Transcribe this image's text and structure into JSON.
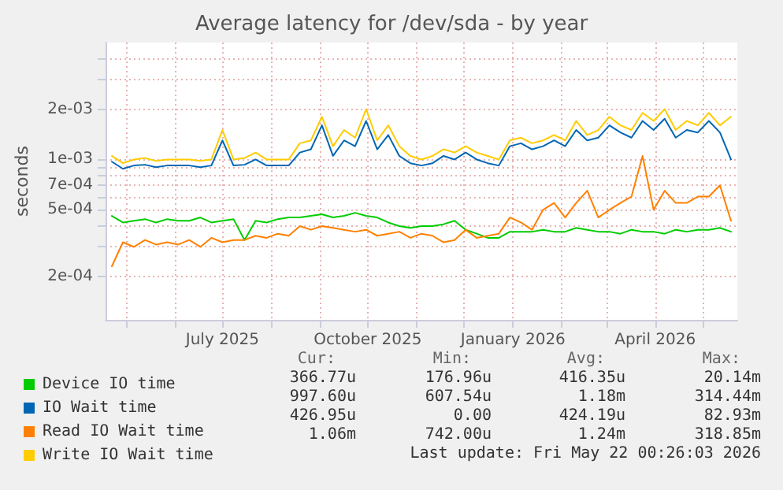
{
  "chart_data": {
    "type": "line",
    "title": "Average latency for /dev/sda - by year",
    "ylabel": "seconds",
    "log": "y",
    "grid": true,
    "legend": "bottom left",
    "marker": "none",
    "line_style": "solid",
    "x": [
      "2025-04-22",
      "2025-04-29",
      "2025-05-06",
      "2025-05-13",
      "2025-05-20",
      "2025-05-27",
      "2025-06-03",
      "2025-06-10",
      "2025-06-17",
      "2025-06-24",
      "2025-07-01",
      "2025-07-08",
      "2025-07-15",
      "2025-07-22",
      "2025-07-29",
      "2025-08-05",
      "2025-08-12",
      "2025-08-19",
      "2025-08-26",
      "2025-09-02",
      "2025-09-09",
      "2025-09-16",
      "2025-09-23",
      "2025-09-30",
      "2025-10-07",
      "2025-10-14",
      "2025-10-21",
      "2025-10-28",
      "2025-11-04",
      "2025-11-11",
      "2025-11-18",
      "2025-11-25",
      "2025-12-02",
      "2025-12-09",
      "2025-12-16",
      "2025-12-23",
      "2025-12-30",
      "2026-01-06",
      "2026-01-13",
      "2026-01-20",
      "2026-01-27",
      "2026-02-03",
      "2026-02-10",
      "2026-02-17",
      "2026-02-24",
      "2026-03-03",
      "2026-03-10",
      "2026-03-17",
      "2026-03-24",
      "2026-03-31",
      "2026-04-07",
      "2026-04-14",
      "2026-04-21",
      "2026-04-28",
      "2026-05-05",
      "2026-05-12",
      "2026-05-19"
    ],
    "xlim": [
      "2025-04-18",
      "2026-05-23"
    ],
    "xticks": [
      {
        "value": "2025-05-01",
        "label": null
      },
      {
        "value": "2025-06-01",
        "label": null
      },
      {
        "value": "2025-07-01",
        "label": "July 2025"
      },
      {
        "value": "2025-08-01",
        "label": null
      },
      {
        "value": "2025-09-01",
        "label": null
      },
      {
        "value": "2025-10-01",
        "label": "October 2025"
      },
      {
        "value": "2025-11-01",
        "label": null
      },
      {
        "value": "2025-12-01",
        "label": null
      },
      {
        "value": "2026-01-01",
        "label": "January 2026"
      },
      {
        "value": "2026-02-01",
        "label": null
      },
      {
        "value": "2026-03-01",
        "label": null
      },
      {
        "value": "2026-04-01",
        "label": "April 2026"
      },
      {
        "value": "2026-05-01",
        "label": null
      }
    ],
    "ylim": [
      0.00011,
      0.005
    ],
    "yticks": [
      {
        "value": 0.0002,
        "label": "2e-04"
      },
      {
        "value": 0.0003,
        "label": null
      },
      {
        "value": 0.0004,
        "label": null
      },
      {
        "value": 0.0005,
        "label": "5e-04"
      },
      {
        "value": 0.0006,
        "label": null
      },
      {
        "value": 0.0007,
        "label": "7e-04"
      },
      {
        "value": 0.0008,
        "label": null
      },
      {
        "value": 0.0009,
        "label": null
      },
      {
        "value": 0.001,
        "label": "1e-03"
      },
      {
        "value": 0.002,
        "label": "2e-03"
      },
      {
        "value": 0.003,
        "label": null
      },
      {
        "value": 0.004,
        "label": null
      }
    ],
    "series": [
      {
        "name": "Device IO time",
        "color": "#00cc00",
        "values": [
          0.00046,
          0.00042,
          0.00043,
          0.00044,
          0.00042,
          0.00044,
          0.00043,
          0.00043,
          0.00045,
          0.00042,
          0.00043,
          0.00044,
          0.00033,
          0.00043,
          0.00042,
          0.00044,
          0.00045,
          0.00045,
          0.00046,
          0.00047,
          0.00045,
          0.00046,
          0.00048,
          0.00046,
          0.00045,
          0.00042,
          0.0004,
          0.00039,
          0.0004,
          0.0004,
          0.00041,
          0.00043,
          0.00038,
          0.00036,
          0.00034,
          0.00034,
          0.00037,
          0.00037,
          0.00037,
          0.00038,
          0.00037,
          0.00037,
          0.00039,
          0.00038,
          0.00037,
          0.00037,
          0.00036,
          0.00038,
          0.00037,
          0.00037,
          0.00036,
          0.00038,
          0.00037,
          0.00038,
          0.00038,
          0.00039,
          0.00037
        ]
      },
      {
        "name": "IO Wait time",
        "color": "#0066b3",
        "values": [
          0.00097,
          0.00088,
          0.00092,
          0.00093,
          0.0009,
          0.00092,
          0.00092,
          0.00092,
          0.0009,
          0.00092,
          0.0013,
          0.00092,
          0.00093,
          0.001,
          0.00092,
          0.00092,
          0.00092,
          0.0011,
          0.00115,
          0.0016,
          0.00105,
          0.0013,
          0.0012,
          0.0017,
          0.00115,
          0.0014,
          0.00105,
          0.00095,
          0.00092,
          0.00095,
          0.00105,
          0.001,
          0.0011,
          0.001,
          0.00095,
          0.00092,
          0.0012,
          0.00125,
          0.00115,
          0.0012,
          0.0013,
          0.0012,
          0.0015,
          0.0013,
          0.00135,
          0.0016,
          0.00145,
          0.00135,
          0.0017,
          0.0015,
          0.00175,
          0.00135,
          0.0015,
          0.00145,
          0.0017,
          0.00145,
          0.001
        ]
      },
      {
        "name": "Read IO Wait time",
        "color": "#ff8000",
        "values": [
          0.00023,
          0.00032,
          0.0003,
          0.00033,
          0.00031,
          0.00032,
          0.00031,
          0.00033,
          0.0003,
          0.00034,
          0.00032,
          0.00033,
          0.00033,
          0.00035,
          0.00034,
          0.00036,
          0.00035,
          0.0004,
          0.00038,
          0.0004,
          0.00039,
          0.00038,
          0.00037,
          0.00038,
          0.00035,
          0.00036,
          0.00037,
          0.00034,
          0.00036,
          0.00035,
          0.00032,
          0.00033,
          0.00038,
          0.00034,
          0.00035,
          0.00036,
          0.00045,
          0.00042,
          0.00038,
          0.0005,
          0.00055,
          0.00045,
          0.00055,
          0.00065,
          0.00045,
          0.0005,
          0.00055,
          0.0006,
          0.00105,
          0.0005,
          0.00065,
          0.00055,
          0.00055,
          0.0006,
          0.0006,
          0.0007,
          0.00043
        ]
      },
      {
        "name": "Write IO Wait time",
        "color": "#ffcc00",
        "values": [
          0.00105,
          0.00095,
          0.001,
          0.00102,
          0.00098,
          0.001,
          0.001,
          0.001,
          0.00098,
          0.001,
          0.0015,
          0.001,
          0.00102,
          0.0011,
          0.001,
          0.001,
          0.001,
          0.00125,
          0.0013,
          0.0018,
          0.0012,
          0.0015,
          0.00135,
          0.002,
          0.0013,
          0.0016,
          0.0012,
          0.00105,
          0.001,
          0.00105,
          0.00115,
          0.0011,
          0.0012,
          0.0011,
          0.00105,
          0.001,
          0.0013,
          0.00135,
          0.00125,
          0.0013,
          0.0014,
          0.0013,
          0.0017,
          0.0014,
          0.0015,
          0.0018,
          0.0016,
          0.0015,
          0.0019,
          0.0017,
          0.002,
          0.0015,
          0.0017,
          0.0016,
          0.0019,
          0.0016,
          0.0018
        ]
      }
    ],
    "annotations": [
      "Cur: Min: Avg: Max:",
      "366.77u 176.96u 416.35u 20.14m",
      "997.60u 607.54u 1.18m 314.44m",
      "426.95u 0.00 424.19u 82.93m",
      "1.06m 742.00u 1.24m 318.85m",
      "Last update: Fri May 22 00:26:03 2026"
    ]
  }
}
